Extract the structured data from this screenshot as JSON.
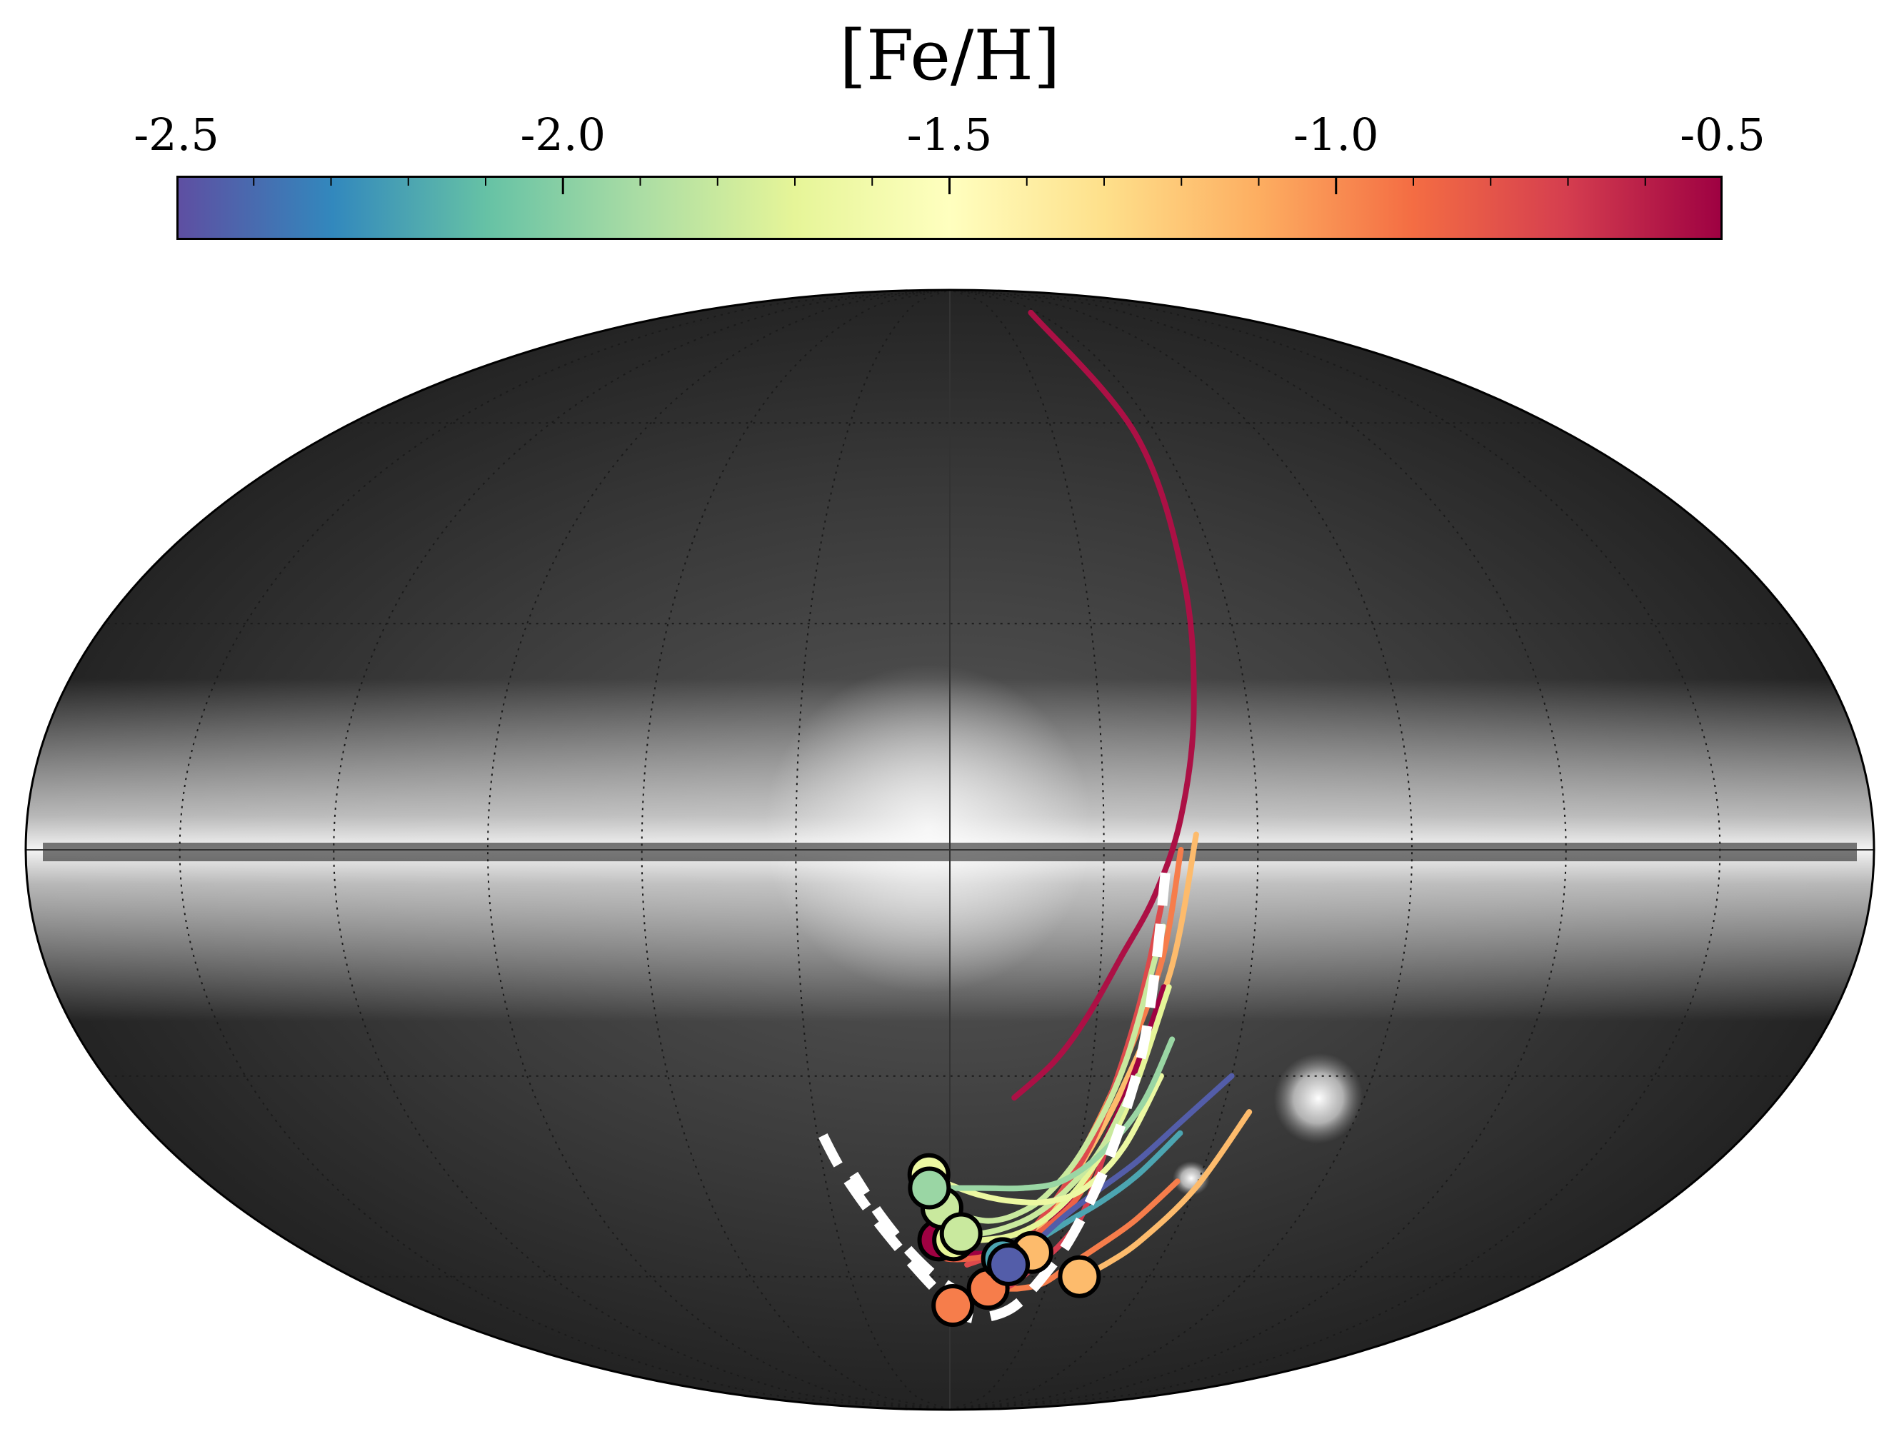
{
  "chart_data": {
    "type": "scatter",
    "projection": "mollweide",
    "colorbar": {
      "label": "[Fe/H]",
      "range": [
        -2.5,
        -0.5
      ],
      "tick_labels": [
        "-2.5",
        "-2.0",
        "-1.5",
        "-1.0",
        "-0.5"
      ],
      "tick_values": [
        -2.5,
        -2.0,
        -1.5,
        -1.0,
        -0.5
      ],
      "minor_step": 0.1,
      "colormap_stops": [
        "#5e4fa2",
        "#3288bd",
        "#66c2a5",
        "#abdda4",
        "#e6f598",
        "#ffffbf",
        "#fee08b",
        "#fdae61",
        "#f46d43",
        "#d53e4f",
        "#9e0142"
      ],
      "position": "top"
    },
    "background": "Gaia all-sky map (grayscale)",
    "grid": true,
    "graticule_lon_step_deg": 30,
    "graticule_lat_step_deg": 30,
    "tracks": [
      {
        "feh": -0.55,
        "lon": [
          -14,
          -22,
          -28,
          -34,
          -40,
          -45,
          -49,
          -52,
          -54,
          -56
        ],
        "lat": [
          -33,
          -28,
          -22,
          -14,
          -6,
          4,
          18,
          36,
          58,
          82
        ],
        "marker": false
      },
      {
        "feh": -0.95,
        "lon": [
          -45,
          -42,
          -36,
          -30,
          -24,
          -18,
          -11,
          -4,
          -1
        ],
        "lat": [
          0,
          -15,
          -30,
          -42,
          -52,
          -58,
          -62,
          -64,
          -65
        ],
        "marker": [
          -1,
          -65
        ]
      },
      {
        "feh": -0.95,
        "lon": [
          -55,
          -48,
          -41,
          -35,
          -29,
          -22,
          -16,
          -12
        ],
        "lat": [
          -45,
          -51,
          -55,
          -58,
          -61,
          -62,
          -62,
          -62
        ],
        "marker": [
          -12,
          -62
        ]
      },
      {
        "feh": -1.15,
        "lon": [
          -66,
          -60,
          -52,
          -45,
          -39
        ],
        "lat": [
          -35,
          -46,
          -54,
          -58,
          -60
        ],
        "marker": [
          -39,
          -60
        ]
      },
      {
        "feh": -1.15,
        "lon": [
          -48,
          -44,
          -37,
          -30,
          -24,
          -23
        ],
        "lat": [
          2,
          -16,
          -32,
          -44,
          -52,
          -56
        ],
        "marker": [
          -23,
          -56
        ]
      },
      {
        "feh": -0.7,
        "lon": [
          -36,
          -34,
          -30,
          -25,
          -20,
          -13,
          -6,
          -1
        ],
        "lat": [
          -40,
          -50,
          -55,
          -58,
          -61,
          -63,
          -64,
          -65
        ],
        "marker": false
      },
      {
        "feh": -0.75,
        "lon": [
          -42,
          -38,
          -33,
          -27,
          -21,
          -16,
          -10,
          -5
        ],
        "lat": [
          -5,
          -22,
          -38,
          -47,
          -53,
          -56,
          -57,
          -58
        ],
        "marker": false
      },
      {
        "feh": -0.5,
        "lon": [
          -43,
          -39,
          -34,
          -28,
          -21,
          -14,
          0,
          2,
          3
        ],
        "lat": [
          -18,
          -30,
          -42,
          -50,
          -54,
          -56,
          -56,
          -55,
          -54
        ],
        "marker": [
          3,
          -54
        ]
      },
      {
        "feh": -0.85,
        "lon": [
          -35,
          -32,
          -27,
          -21,
          -14,
          -6,
          1,
          3
        ],
        "lat": [
          -40,
          -47,
          -51,
          -54,
          -56,
          -57,
          -57,
          -56
        ],
        "marker": false
      },
      {
        "feh": -1.7,
        "lon": [
          -44,
          -39,
          -33,
          -26,
          -18,
          -9,
          -1
        ],
        "lat": [
          -18,
          -34,
          -44,
          -50,
          -53,
          -54,
          -54
        ],
        "marker": [
          -1,
          -54
        ]
      },
      {
        "feh": -1.8,
        "lon": [
          -42,
          -37,
          -31,
          -24,
          -17,
          -10,
          -2,
          2
        ],
        "lat": [
          -10,
          -28,
          -40,
          -47,
          -50,
          -51,
          -50,
          -49
        ],
        "marker": [
          2,
          -49
        ]
      },
      {
        "feh": -1.8,
        "lon": [
          -40,
          -35,
          -29,
          -22,
          -15,
          -8,
          -3
        ],
        "lat": [
          -30,
          -40,
          -46,
          -50,
          -52,
          -53,
          -53
        ],
        "marker": [
          -3,
          -53
        ]
      },
      {
        "feh": -2.2,
        "lon": [
          -52,
          -45,
          -38,
          -31,
          -24,
          -19,
          -15
        ],
        "lat": [
          -38,
          -44,
          -48,
          -51,
          -54,
          -56,
          -57
        ],
        "marker": [
          -15,
          -57
        ]
      },
      {
        "feh": -2.45,
        "lon": [
          -60,
          -52,
          -44,
          -37,
          -30,
          -24,
          -19,
          -17
        ],
        "lat": [
          -30,
          -36,
          -42,
          -46,
          -50,
          -54,
          -57,
          -58
        ],
        "marker": [
          -17,
          -58
        ]
      },
      {
        "feh": -1.65,
        "lon": [
          -45,
          -40,
          -33,
          -25,
          -16,
          -7,
          2,
          5
        ],
        "lat": [
          -30,
          -40,
          -46,
          -48,
          -48,
          -47,
          -45,
          -44
        ],
        "marker": [
          5,
          -44
        ]
      },
      {
        "feh": -1.95,
        "lon": [
          -46,
          -42,
          -35,
          -27,
          -18,
          -8,
          1,
          5
        ],
        "lat": [
          -25,
          -34,
          -41,
          -45,
          -46,
          -46,
          -46,
          -46
        ],
        "marker": [
          5,
          -46
        ]
      }
    ],
    "sagittarius_path": {
      "style": "white dashed",
      "lon": [
        -42,
        -41,
        -40,
        -37,
        -33,
        -28,
        -22,
        -14,
        -6,
        3,
        12,
        20,
        26,
        30
      ],
      "lat": [
        -3,
        -15,
        -28,
        -42,
        -53,
        -60,
        -65,
        -67,
        -67,
        -63,
        -57,
        -50,
        -43,
        -36
      ]
    },
    "sagittarius_path_2": {
      "style": "white dashed",
      "lon": [
        -8,
        2,
        11,
        18,
        23
      ],
      "lat": [
        -64,
        -61,
        -56,
        -50,
        -44
      ]
    }
  }
}
